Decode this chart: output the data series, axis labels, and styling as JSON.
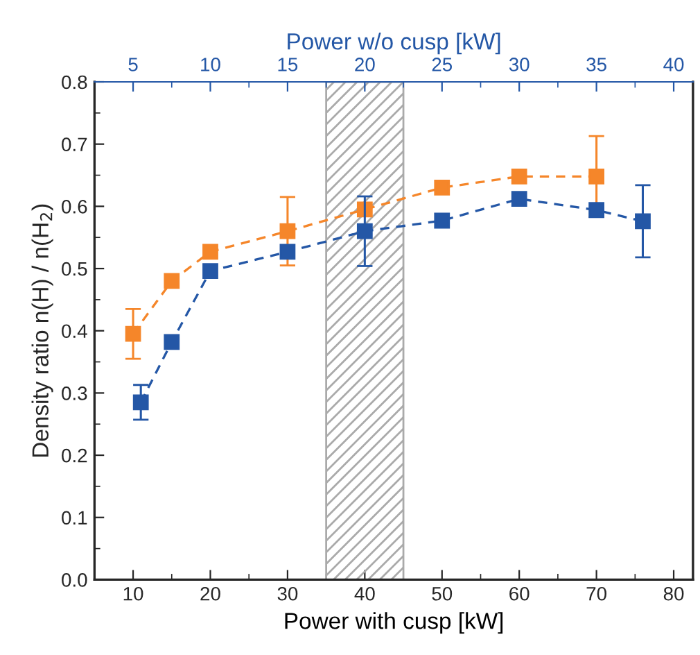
{
  "chart_data": {
    "type": "line",
    "xlabel": "Power with cusp [kW]",
    "x2label": "Power w/o cusp [kW]",
    "ylabel": "Density ratio n(H) / n(H$_{2}$)",
    "xlim": [
      5,
      82.5
    ],
    "xticks": [
      10,
      20,
      30,
      40,
      50,
      60,
      70,
      80
    ],
    "x2lim": [
      2.5,
      41.25
    ],
    "x2ticks": [
      5,
      10,
      15,
      20,
      25,
      30,
      35,
      40
    ],
    "ylim": [
      0,
      0.8
    ],
    "yticks": [
      {
        "value": 0,
        "label": "0.0"
      },
      0.1,
      0.2,
      0.3,
      0.4,
      0.5,
      0.6,
      0.7,
      0.8
    ],
    "marker": "square",
    "line_style": "dashed",
    "grid": false,
    "legend": false,
    "bands": [
      {
        "axis": "x",
        "from": 35,
        "to": 45,
        "color": "#aaaaaa"
      }
    ],
    "series": [
      {
        "color": "#f5862a",
        "x": [
          10,
          15,
          20,
          30,
          40,
          50,
          60,
          70
        ],
        "values": [
          0.395,
          0.48,
          0.527,
          0.56,
          0.595,
          0.63,
          0.648,
          0.648
        ],
        "errors": [
          0.04,
          null,
          null,
          0.055,
          null,
          null,
          null,
          0.065
        ]
      },
      {
        "color": "#2457a6",
        "axis": "x2",
        "x": [
          5.5,
          7.5,
          10,
          15,
          20,
          25,
          30,
          35,
          38
        ],
        "values": [
          0.285,
          0.382,
          0.496,
          0.527,
          0.56,
          0.577,
          0.612,
          0.594,
          0.576
        ],
        "errors": [
          0.028,
          null,
          null,
          null,
          0.056,
          null,
          null,
          null,
          0.058
        ]
      }
    ]
  }
}
